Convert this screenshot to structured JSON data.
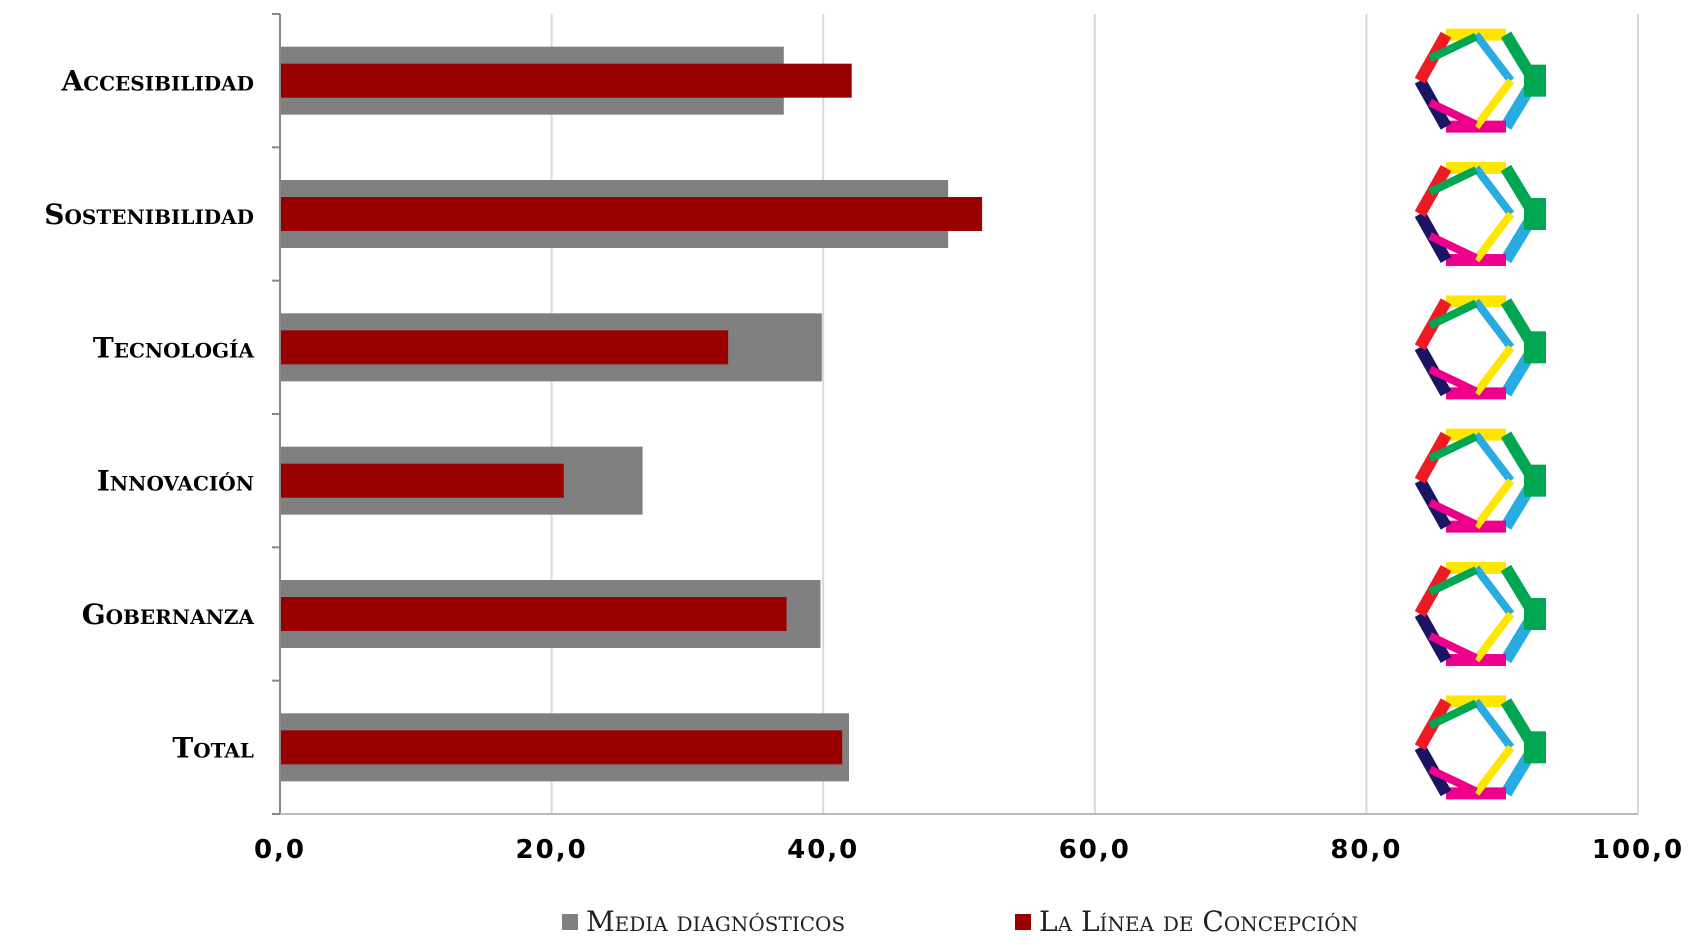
{
  "chart_data": {
    "type": "bar",
    "orientation": "horizontal",
    "categories": [
      "Accesibilidad",
      "Sostenibilidad",
      "Tecnología",
      "Innovación",
      "Gobernanza",
      "Total"
    ],
    "series": [
      {
        "name": "Media diagnósticos",
        "color": "#808080",
        "values": [
          37.1,
          49.2,
          39.9,
          26.7,
          39.8,
          41.9
        ]
      },
      {
        "name": "La Línea de Concepción",
        "color": "#990000",
        "values": [
          42.1,
          51.7,
          33.0,
          20.9,
          37.3,
          41.4
        ]
      }
    ],
    "x_ticks": [
      "0,0",
      "20,0",
      "40,0",
      "60,0",
      "80,0",
      "100,0"
    ],
    "xlim": [
      0,
      100
    ],
    "grid": true,
    "legend_position": "bottom",
    "marker_icon": "hexagon-logo-icon"
  }
}
